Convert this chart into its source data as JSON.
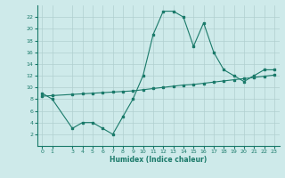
{
  "xlabel": "Humidex (Indice chaleur)",
  "line1_x": [
    0,
    1,
    3,
    4,
    5,
    6,
    7,
    8,
    9,
    10,
    11,
    12,
    13,
    14,
    15,
    16,
    17,
    18,
    19,
    20,
    21,
    22,
    23
  ],
  "line1_y": [
    9,
    8,
    3,
    4,
    4,
    3,
    2,
    5,
    8,
    12,
    19,
    23,
    23,
    22,
    17,
    21,
    16,
    13,
    12,
    11,
    12,
    13,
    13
  ],
  "line2_x": [
    0,
    1,
    3,
    4,
    5,
    6,
    7,
    8,
    9,
    10,
    11,
    12,
    13,
    14,
    15,
    16,
    17,
    18,
    19,
    20,
    21,
    22,
    23
  ],
  "line2_y": [
    8.5,
    8.6,
    8.8,
    8.9,
    9.0,
    9.1,
    9.2,
    9.3,
    9.4,
    9.6,
    9.8,
    10.0,
    10.2,
    10.4,
    10.5,
    10.7,
    10.9,
    11.1,
    11.3,
    11.5,
    11.7,
    11.9,
    12.1
  ],
  "line_color": "#1a7a6a",
  "bg_color": "#ceeaea",
  "grid_color": "#b0cfcf",
  "ylim": [
    0,
    24
  ],
  "xlim": [
    -0.5,
    23.5
  ],
  "yticks": [
    2,
    4,
    6,
    8,
    10,
    12,
    14,
    16,
    18,
    20,
    22
  ],
  "xticks": [
    0,
    1,
    3,
    4,
    5,
    6,
    7,
    8,
    9,
    10,
    11,
    12,
    13,
    14,
    15,
    16,
    17,
    18,
    19,
    20,
    21,
    22,
    23
  ]
}
